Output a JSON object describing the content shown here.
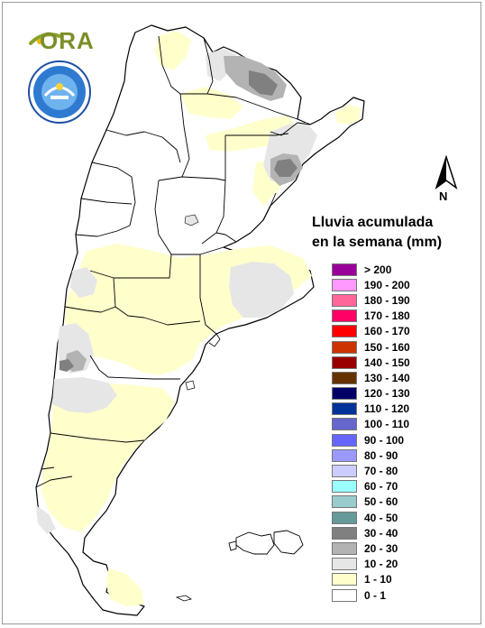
{
  "logo": {
    "text": "ORA",
    "lettering": "SERVICIO METEOROLOGICO NACIONAL ARGENTINA"
  },
  "north_arrow": {
    "label": "N"
  },
  "legend": {
    "title_line1": "Lluvia acumulada",
    "title_line2": "en la semana (mm)",
    "items": [
      {
        "label": "> 200",
        "color": "#990099"
      },
      {
        "label": "190 - 200",
        "color": "#ff99ff"
      },
      {
        "label": "180 - 190",
        "color": "#ff6699"
      },
      {
        "label": "170 - 180",
        "color": "#ff0066"
      },
      {
        "label": "160 - 170",
        "color": "#ff0000"
      },
      {
        "label": "150 - 160",
        "color": "#cc3300"
      },
      {
        "label": "140 - 150",
        "color": "#990000"
      },
      {
        "label": "130 - 140",
        "color": "#663300"
      },
      {
        "label": "120 - 130",
        "color": "#000066"
      },
      {
        "label": "110 - 120",
        "color": "#003399"
      },
      {
        "label": "100 - 110",
        "color": "#6666cc"
      },
      {
        "label": "90 - 100",
        "color": "#6666ff"
      },
      {
        "label": "80 - 90",
        "color": "#9999ff"
      },
      {
        "label": "70 - 80",
        "color": "#ccccff"
      },
      {
        "label": "60 - 70",
        "color": "#99ffff"
      },
      {
        "label": "50 - 60",
        "color": "#99cccc"
      },
      {
        "label": "40 - 50",
        "color": "#669999"
      },
      {
        "label": "30 - 40",
        "color": "#808080"
      },
      {
        "label": "20 - 30",
        "color": "#b3b3b3"
      },
      {
        "label": "10 - 20",
        "color": "#e6e6e6"
      },
      {
        "label": "1 - 10",
        "color": "#ffffcc"
      },
      {
        "label": "0 - 1",
        "color": "#ffffff"
      }
    ]
  }
}
